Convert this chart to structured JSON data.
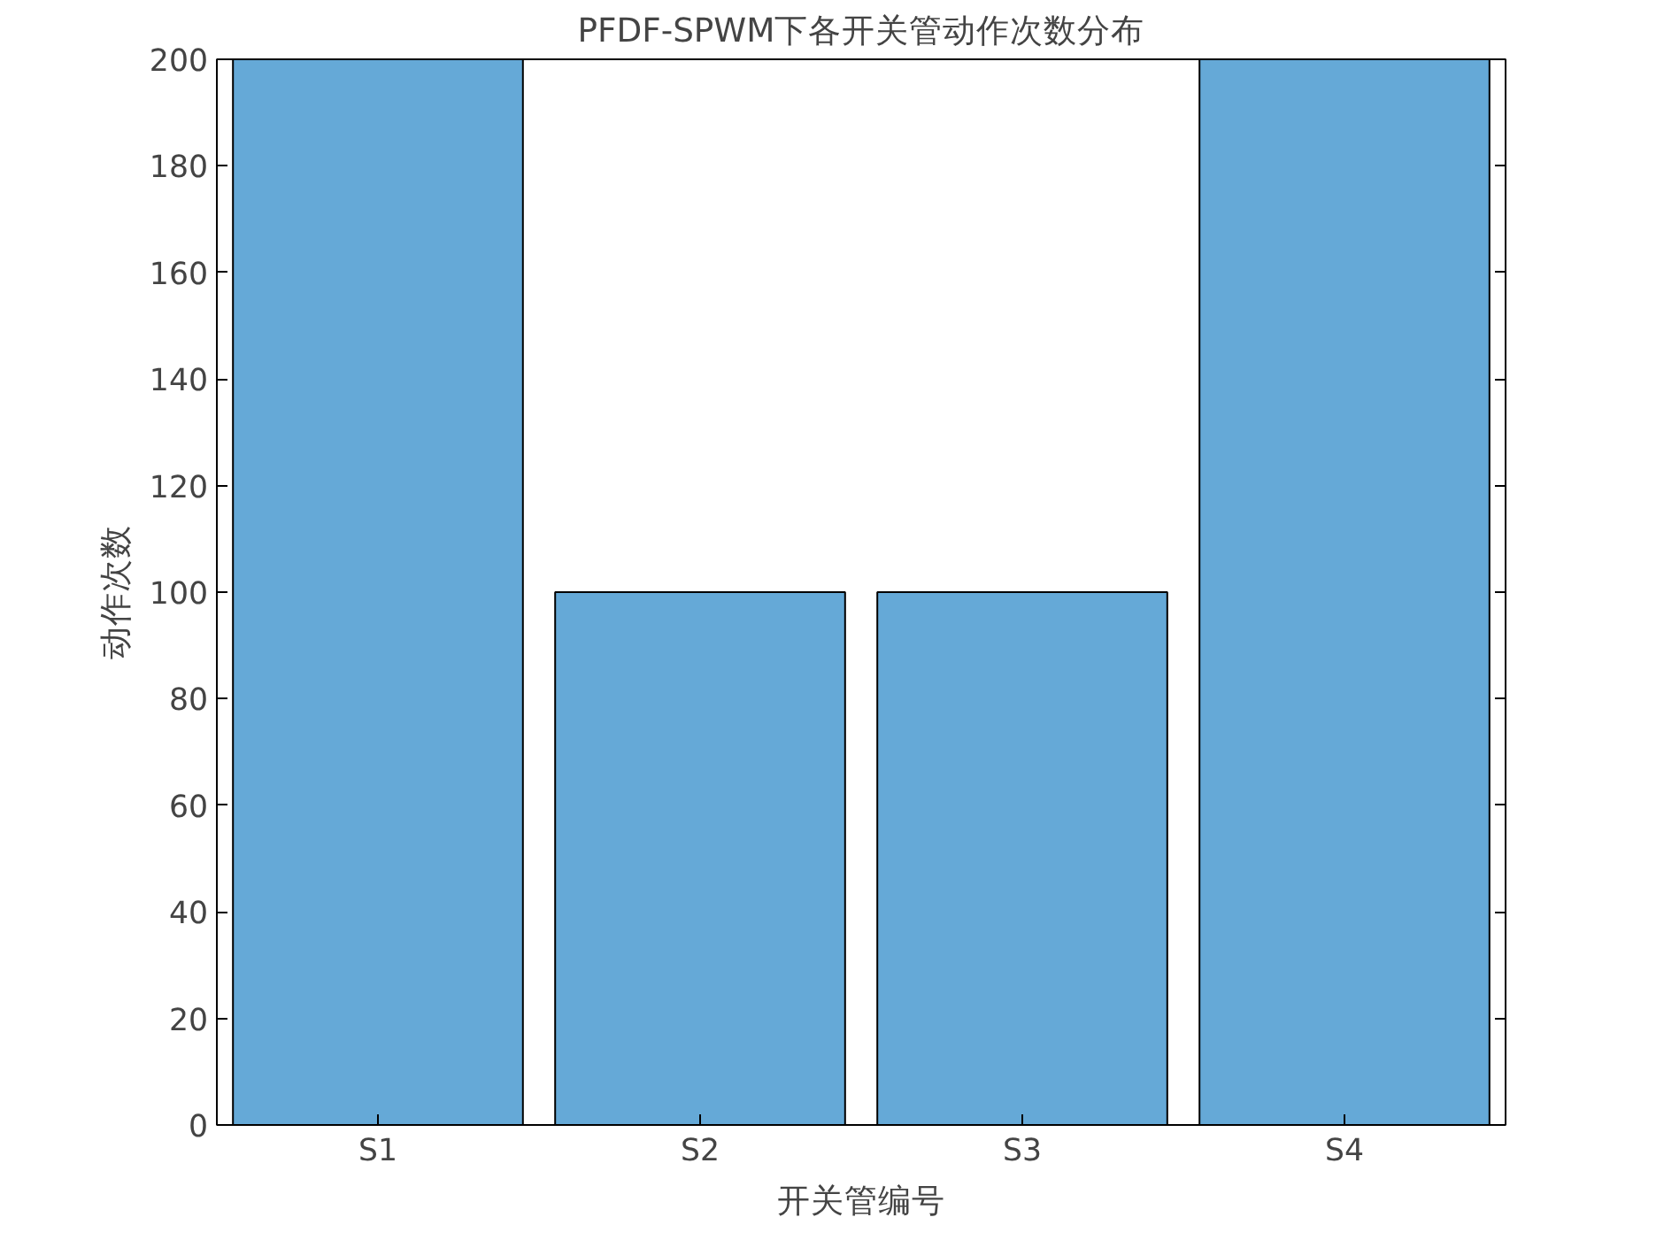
{
  "chart_data": {
    "type": "bar",
    "title": "PFDF-SPWM下各开关管动作次数分布",
    "xlabel": "开关管编号",
    "ylabel": "动作次数",
    "categories": [
      "S1",
      "S2",
      "S3",
      "S4"
    ],
    "values": [
      200,
      100,
      100,
      200
    ],
    "color": "#65a9d7",
    "ylim": [
      0,
      200
    ],
    "yticks": [
      0,
      20,
      40,
      60,
      80,
      100,
      120,
      140,
      160,
      180,
      200
    ],
    "grid": false
  }
}
